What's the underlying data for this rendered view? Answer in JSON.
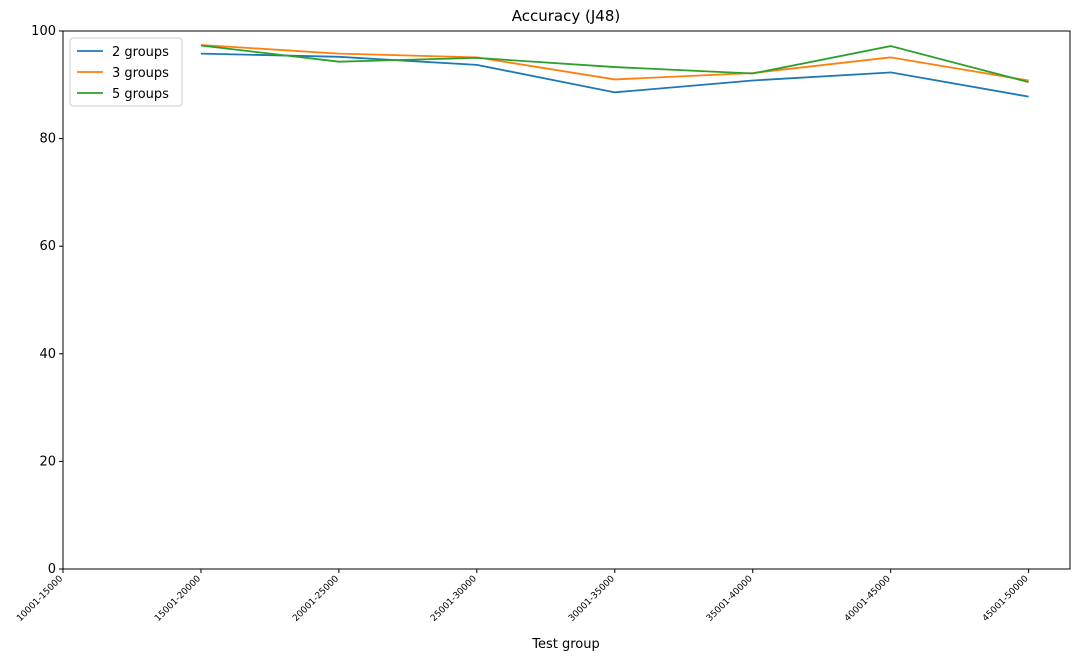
{
  "chart_data": {
    "type": "line",
    "title": "Accuracy (J48)",
    "x_label": "Test group",
    "categories": [
      "10001-15000",
      "15001-20000",
      "20001-25000",
      "25001-30000",
      "30001-35000",
      "35001-40000",
      "40001-45000",
      "45001-50000"
    ],
    "series": [
      {
        "name": "2 groups",
        "color": "#1f77b4",
        "values": [
          null,
          95.8,
          95.2,
          93.7,
          88.6,
          90.8,
          92.3,
          87.8
        ]
      },
      {
        "name": "3 groups",
        "color": "#ff7f0e",
        "values": [
          null,
          97.4,
          95.8,
          95.1,
          91.0,
          92.2,
          95.1,
          90.8
        ]
      },
      {
        "name": "5 groups",
        "color": "#2ca02c",
        "values": [
          null,
          97.3,
          94.3,
          95.0,
          93.3,
          92.1,
          97.2,
          90.5
        ]
      }
    ],
    "ylim": [
      0,
      100
    ],
    "yticks": [
      0,
      20,
      40,
      60,
      80,
      100
    ],
    "grid": false,
    "legend": "upper-left"
  }
}
